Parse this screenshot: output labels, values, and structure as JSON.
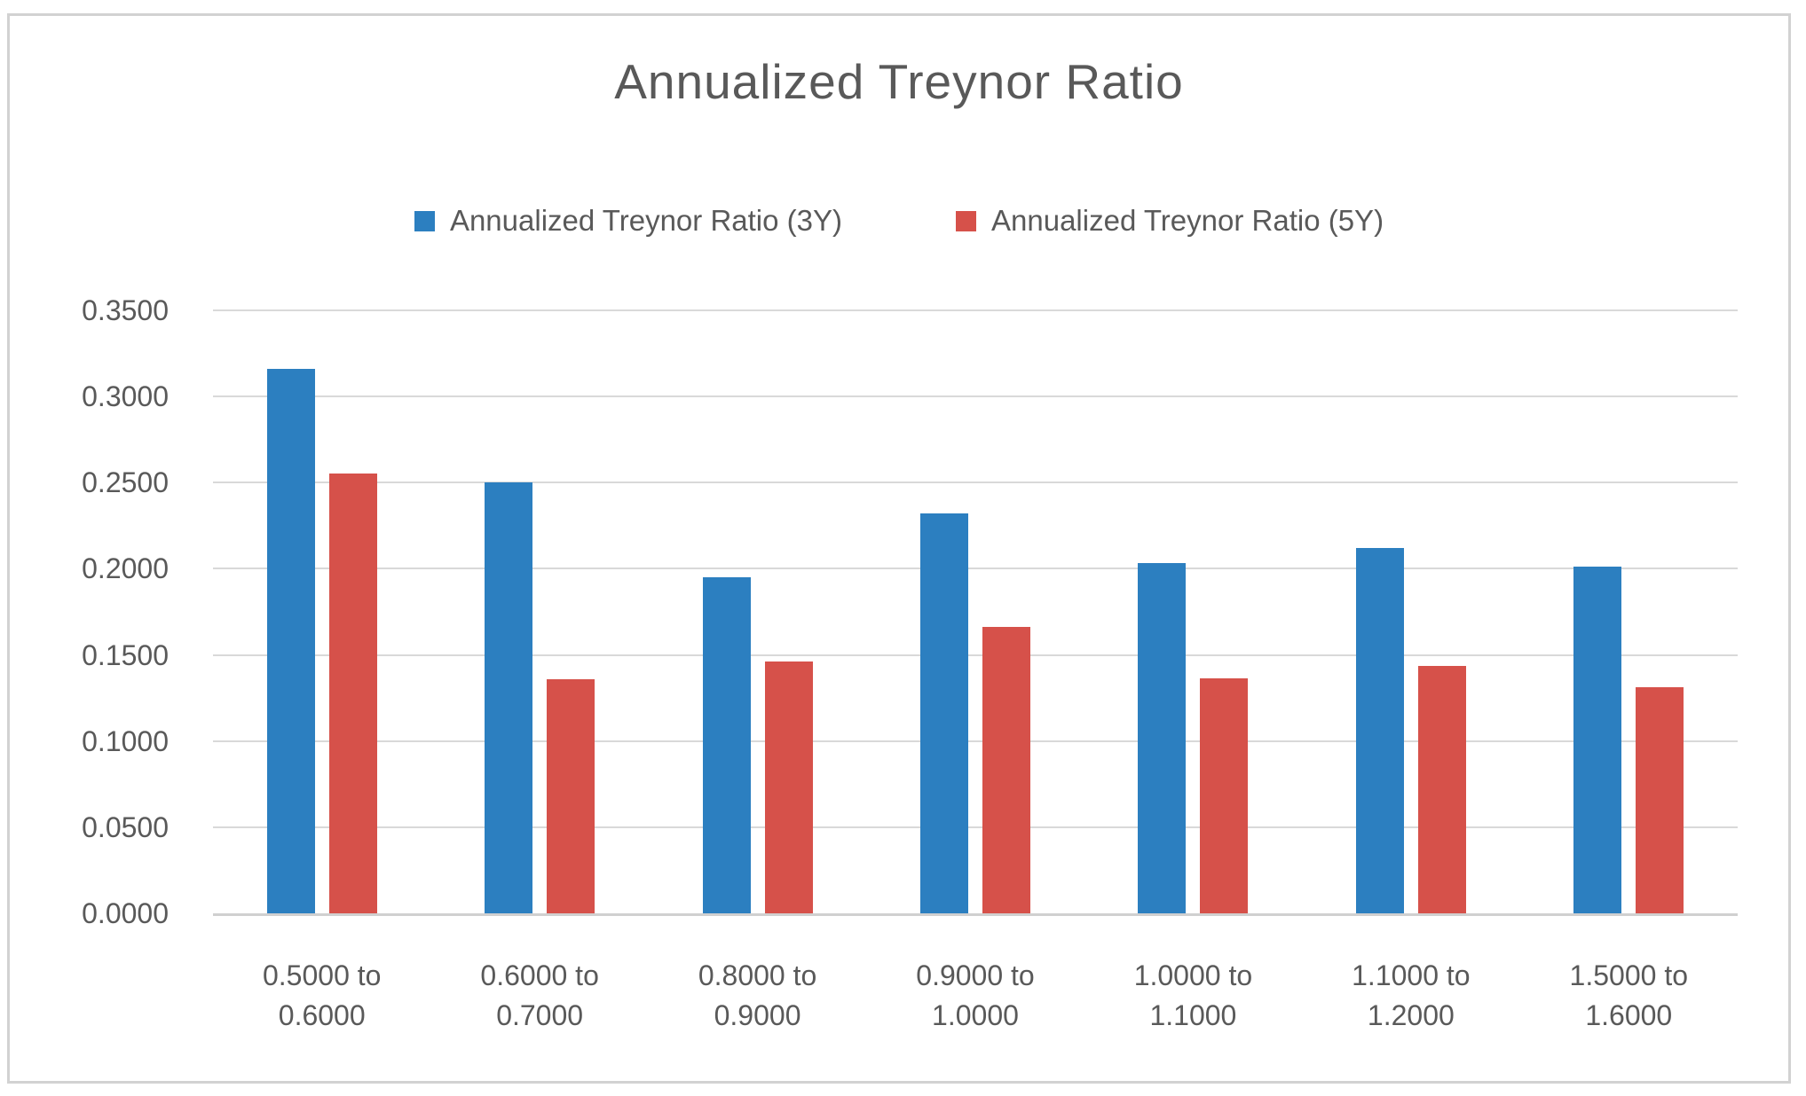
{
  "chart_data": {
    "type": "bar",
    "title": "Annualized Treynor Ratio",
    "categories": [
      "0.5000 to 0.6000",
      "0.6000 to 0.7000",
      "0.8000 to 0.9000",
      "0.9000 to 1.0000",
      "1.0000 to 1.1000",
      "1.1000 to 1.2000",
      "1.5000 to 1.6000"
    ],
    "series": [
      {
        "name": "Annualized Treynor Ratio (3Y)",
        "color": "#2c7fc0",
        "values": [
          0.316,
          0.25,
          0.195,
          0.232,
          0.2035,
          0.212,
          0.2015
        ]
      },
      {
        "name": "Annualized Treynor Ratio (5Y)",
        "color": "#d6514a",
        "values": [
          0.2555,
          0.136,
          0.146,
          0.1665,
          0.1365,
          0.1435,
          0.131
        ]
      }
    ],
    "xlabel": "",
    "ylabel": "",
    "ylim": [
      0,
      0.35
    ],
    "ytick_step": 0.05,
    "ytick_decimals": 4,
    "grid": true,
    "legend_position": "top",
    "colors": {
      "grid": "#d9d9d9",
      "baseline": "#d0d0d0",
      "text": "#595959",
      "frame_border": "#d2d2d2"
    }
  }
}
